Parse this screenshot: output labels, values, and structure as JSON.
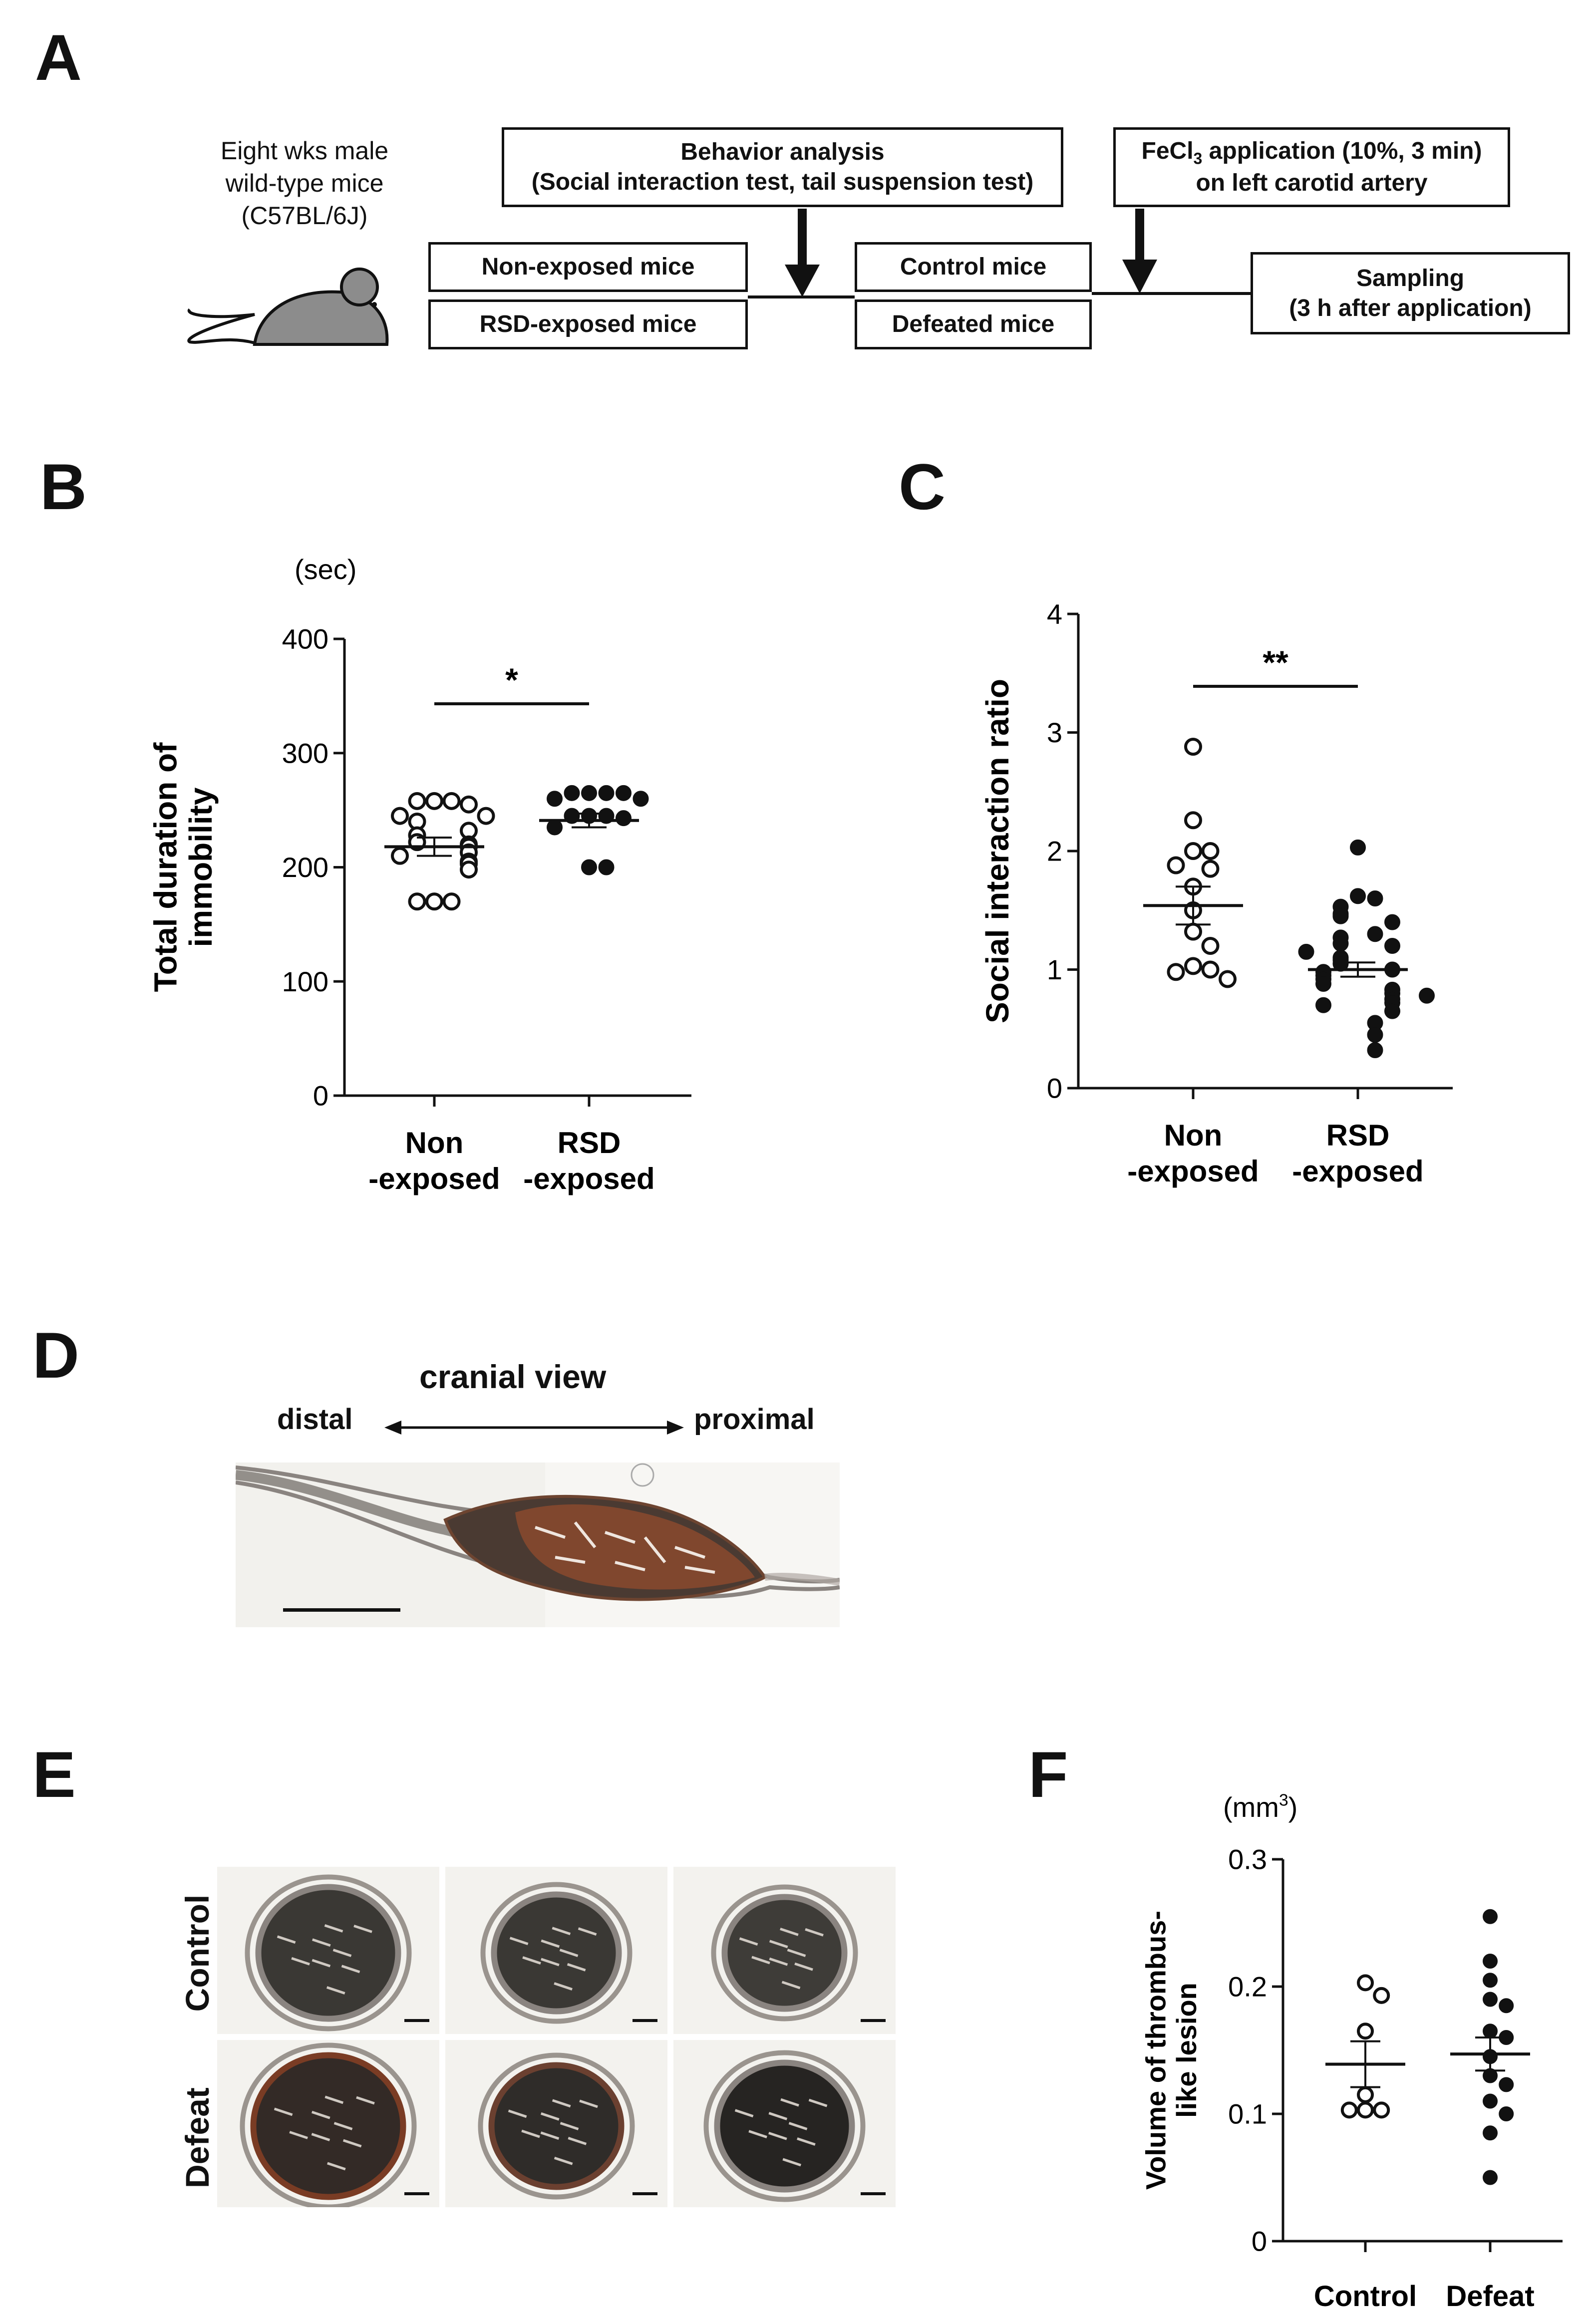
{
  "panels": {
    "A": "A",
    "B": "B",
    "C": "C",
    "D": "D",
    "E": "E",
    "F": "F"
  },
  "panel_a": {
    "mouse_label": [
      "Eight wks male",
      "wild-type mice",
      "(C57BL/6J)"
    ],
    "box_nonexposed": "Non-exposed mice",
    "box_rsd": "RSD-exposed mice",
    "behavior_title": "Behavior analysis",
    "behavior_detail": "(Social interaction test, tail suspension test)",
    "box_control": "Control mice",
    "box_defeated": "Defeated mice",
    "fecl3_line1_prefix": "FeCl",
    "fecl3_sub": "3",
    "fecl3_line1_suffix": " application (10%, 3 min)",
    "fecl3_line2": "on left carotid artery",
    "sampling_line1": "Sampling",
    "sampling_line2": "(3 h after application)"
  },
  "panel_d": {
    "title": "cranial view",
    "left": "distal",
    "right": "proximal"
  },
  "panel_e": {
    "rows": [
      "Control",
      "Defeat"
    ]
  },
  "chart_data": [
    {
      "id": "B",
      "type": "scatter",
      "unit": "(sec)",
      "ylabel": [
        "Total duration of",
        "immobility"
      ],
      "ylim": [
        0,
        400
      ],
      "yticks": [
        0,
        100,
        200,
        300,
        400
      ],
      "categories": [
        "Non\n-exposed",
        "RSD\n-exposed"
      ],
      "category_lines": [
        [
          "Non",
          "-exposed"
        ],
        [
          "RSD",
          "-exposed"
        ]
      ],
      "significance": "*",
      "series": [
        {
          "filled": false,
          "mean": 218,
          "sem": 8,
          "values": [
            258,
            258,
            258,
            255,
            245,
            245,
            240,
            232,
            228,
            222,
            220,
            218,
            213,
            210,
            205,
            203,
            198,
            170,
            170,
            170
          ]
        },
        {
          "filled": true,
          "mean": 241,
          "sem": 6,
          "values": [
            265,
            265,
            265,
            265,
            260,
            260,
            245,
            245,
            245,
            243,
            235,
            200,
            200
          ]
        }
      ]
    },
    {
      "id": "C",
      "type": "scatter",
      "ylabel": [
        "Social interaction ratio"
      ],
      "ylim": [
        0,
        4
      ],
      "yticks": [
        0,
        1,
        2,
        3,
        4
      ],
      "categories": [
        "Non\n-exposed",
        "RSD\n-exposed"
      ],
      "category_lines": [
        [
          "Non",
          "-exposed"
        ],
        [
          "RSD",
          "-exposed"
        ]
      ],
      "significance": "**",
      "series": [
        {
          "filled": false,
          "mean": 1.54,
          "sem": 0.16,
          "values": [
            2.88,
            2.26,
            2.0,
            2.0,
            1.88,
            1.85,
            1.7,
            1.5,
            1.32,
            1.2,
            1.03,
            1.0,
            0.98,
            0.92
          ]
        },
        {
          "filled": true,
          "mean": 1.0,
          "sem": 0.06,
          "values": [
            2.03,
            1.62,
            1.6,
            1.53,
            1.47,
            1.45,
            1.4,
            1.3,
            1.27,
            1.22,
            1.2,
            1.1,
            1.08,
            1.05,
            1.0,
            0.98,
            0.95,
            0.92,
            0.88,
            0.83,
            0.8,
            0.75,
            0.72,
            0.7,
            0.65,
            0.55,
            0.45,
            0.32,
            0.78,
            1.15
          ]
        }
      ]
    },
    {
      "id": "F",
      "type": "scatter",
      "unit_prefix": "(mm",
      "unit_sup": "3",
      "unit_suffix": ")",
      "ylabel": [
        "Volume of thrombus-",
        "like lesion"
      ],
      "ylim": [
        0,
        0.3
      ],
      "yticks": [
        0,
        0.1,
        0.2,
        0.3
      ],
      "ytick_labels": [
        "0",
        "0.1",
        "0.2",
        "0.3"
      ],
      "categories": [
        "Control",
        "Defeat"
      ],
      "category_lines": [
        [
          "Control"
        ],
        [
          "Defeat"
        ]
      ],
      "series": [
        {
          "filled": false,
          "mean": 0.139,
          "sem": 0.018,
          "values": [
            0.203,
            0.193,
            0.165,
            0.115,
            0.103,
            0.103,
            0.103
          ]
        },
        {
          "filled": true,
          "mean": 0.147,
          "sem": 0.013,
          "values": [
            0.255,
            0.22,
            0.205,
            0.19,
            0.185,
            0.165,
            0.16,
            0.145,
            0.13,
            0.123,
            0.11,
            0.1,
            0.085,
            0.05
          ]
        }
      ]
    }
  ]
}
